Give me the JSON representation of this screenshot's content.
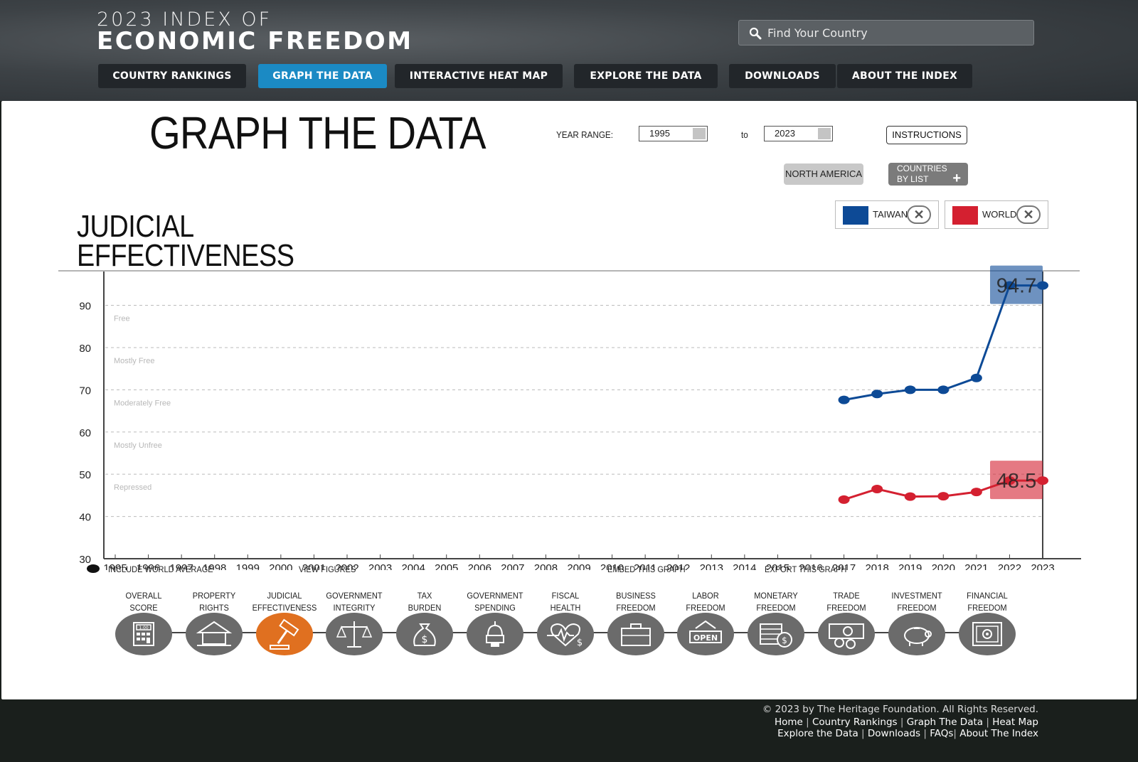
{
  "header": {
    "logo_top": "2023 INDEX OF",
    "logo_bottom": "ECONOMIC FREEDOM",
    "search_placeholder": "Find Your Country",
    "nav": [
      {
        "label": "COUNTRY RANKINGS",
        "active": false
      },
      {
        "label": "GRAPH THE DATA",
        "active": true
      },
      {
        "label": "INTERACTIVE HEAT MAP",
        "active": false
      },
      {
        "label": "EXPLORE THE DATA",
        "active": false
      },
      {
        "label": "DOWNLOADS",
        "active": false
      },
      {
        "label": "ABOUT THE INDEX",
        "active": false
      }
    ]
  },
  "main": {
    "page_title": "GRAPH THE DATA",
    "year_range_label": "YEAR RANGE:",
    "year_from": "1995",
    "to_label": "to",
    "year_to": "2023",
    "instructions_label": "INSTRUCTIONS",
    "region_label": "NORTH AMERICA",
    "countries_by_list_label_1": "COUNTRIES",
    "countries_by_list_label_2": "BY LIST",
    "plus_glyph": "+",
    "chart_title_line1": "JUDICIAL",
    "chart_title_line2": "EFFECTIVENESS",
    "include_world_label": "INCLUDE WORLD AVERAGE",
    "view_figures_label": "VIEW FIGURES",
    "embed_label": "EMBED THIS GRAPH",
    "export_label": "EXPORT THIS GRAPH"
  },
  "legend": [
    {
      "name": "TAIWAN",
      "color": "#0d4a96"
    },
    {
      "name": "WORLD",
      "color": "#d42030"
    }
  ],
  "chart_data": {
    "type": "line",
    "title": "JUDICIAL EFFECTIVENESS",
    "x": [
      1995,
      1996,
      1997,
      1998,
      1999,
      2000,
      2001,
      2002,
      2003,
      2004,
      2005,
      2006,
      2007,
      2008,
      2009,
      2010,
      2011,
      2012,
      2013,
      2014,
      2015,
      2016,
      2017,
      2018,
      2019,
      2020,
      2021,
      2022,
      2023
    ],
    "ylim": [
      30,
      98
    ],
    "yticks": [
      30,
      40,
      50,
      60,
      70,
      80,
      90
    ],
    "bands": [
      {
        "label": "Free",
        "y": 90
      },
      {
        "label": "Mostly Free",
        "y": 80
      },
      {
        "label": "Moderately Free",
        "y": 70
      },
      {
        "label": "Mostly Unfree",
        "y": 60
      },
      {
        "label": "Repressed",
        "y": 50
      }
    ],
    "series": [
      {
        "name": "TAIWAN",
        "color": "#0d4a96",
        "points": [
          [
            2017,
            67.6
          ],
          [
            2018,
            69.0
          ],
          [
            2019,
            70.0
          ],
          [
            2020,
            70.0
          ],
          [
            2021,
            72.8
          ],
          [
            2022,
            94.7
          ],
          [
            2023,
            94.7
          ]
        ],
        "label": "94.7"
      },
      {
        "name": "WORLD",
        "color": "#d42030",
        "points": [
          [
            2017,
            44.0
          ],
          [
            2018,
            46.5
          ],
          [
            2019,
            44.7
          ],
          [
            2020,
            44.8
          ],
          [
            2021,
            45.8
          ],
          [
            2022,
            48.5
          ],
          [
            2023,
            48.5
          ]
        ],
        "label": "48.5"
      }
    ]
  },
  "categories": [
    {
      "l1": "OVERALL",
      "l2": "SCORE",
      "icon": "calculator-icon",
      "active": false
    },
    {
      "l1": "PROPERTY",
      "l2": "RIGHTS",
      "icon": "house-icon",
      "active": false
    },
    {
      "l1": "JUDICIAL",
      "l2": "EFFECTIVENESS",
      "icon": "gavel-icon",
      "active": true
    },
    {
      "l1": "GOVERNMENT",
      "l2": "INTEGRITY",
      "icon": "scales-icon",
      "active": false
    },
    {
      "l1": "TAX",
      "l2": "BURDEN",
      "icon": "money-bag-icon",
      "active": false
    },
    {
      "l1": "GOVERNMENT",
      "l2": "SPENDING",
      "icon": "capitol-icon",
      "active": false
    },
    {
      "l1": "FISCAL",
      "l2": "HEALTH",
      "icon": "heartbeat-icon",
      "active": false
    },
    {
      "l1": "BUSINESS",
      "l2": "FREEDOM",
      "icon": "briefcase-icon",
      "active": false
    },
    {
      "l1": "LABOR",
      "l2": "FREEDOM",
      "icon": "open-sign-icon",
      "active": false
    },
    {
      "l1": "MONETARY",
      "l2": "FREEDOM",
      "icon": "coins-icon",
      "active": false
    },
    {
      "l1": "TRADE",
      "l2": "FREEDOM",
      "icon": "currency-icon",
      "active": false
    },
    {
      "l1": "INVESTMENT",
      "l2": "FREEDOM",
      "icon": "piggy-bank-icon",
      "active": false
    },
    {
      "l1": "FINANCIAL",
      "l2": "FREEDOM",
      "icon": "safe-icon",
      "active": false
    }
  ],
  "icon_text": {
    "calculator": "1.00",
    "open": "OPEN",
    "dollar": "$"
  },
  "footer": {
    "copyright": "© 2023 by The Heritage Foundation. All Rights Reserved.",
    "links_row1": [
      "Home",
      "Country Rankings",
      "Graph The Data",
      "Heat Map"
    ],
    "links_row2": [
      "Explore the Data",
      "Downloads",
      "FAQs",
      "About The Index"
    ]
  }
}
